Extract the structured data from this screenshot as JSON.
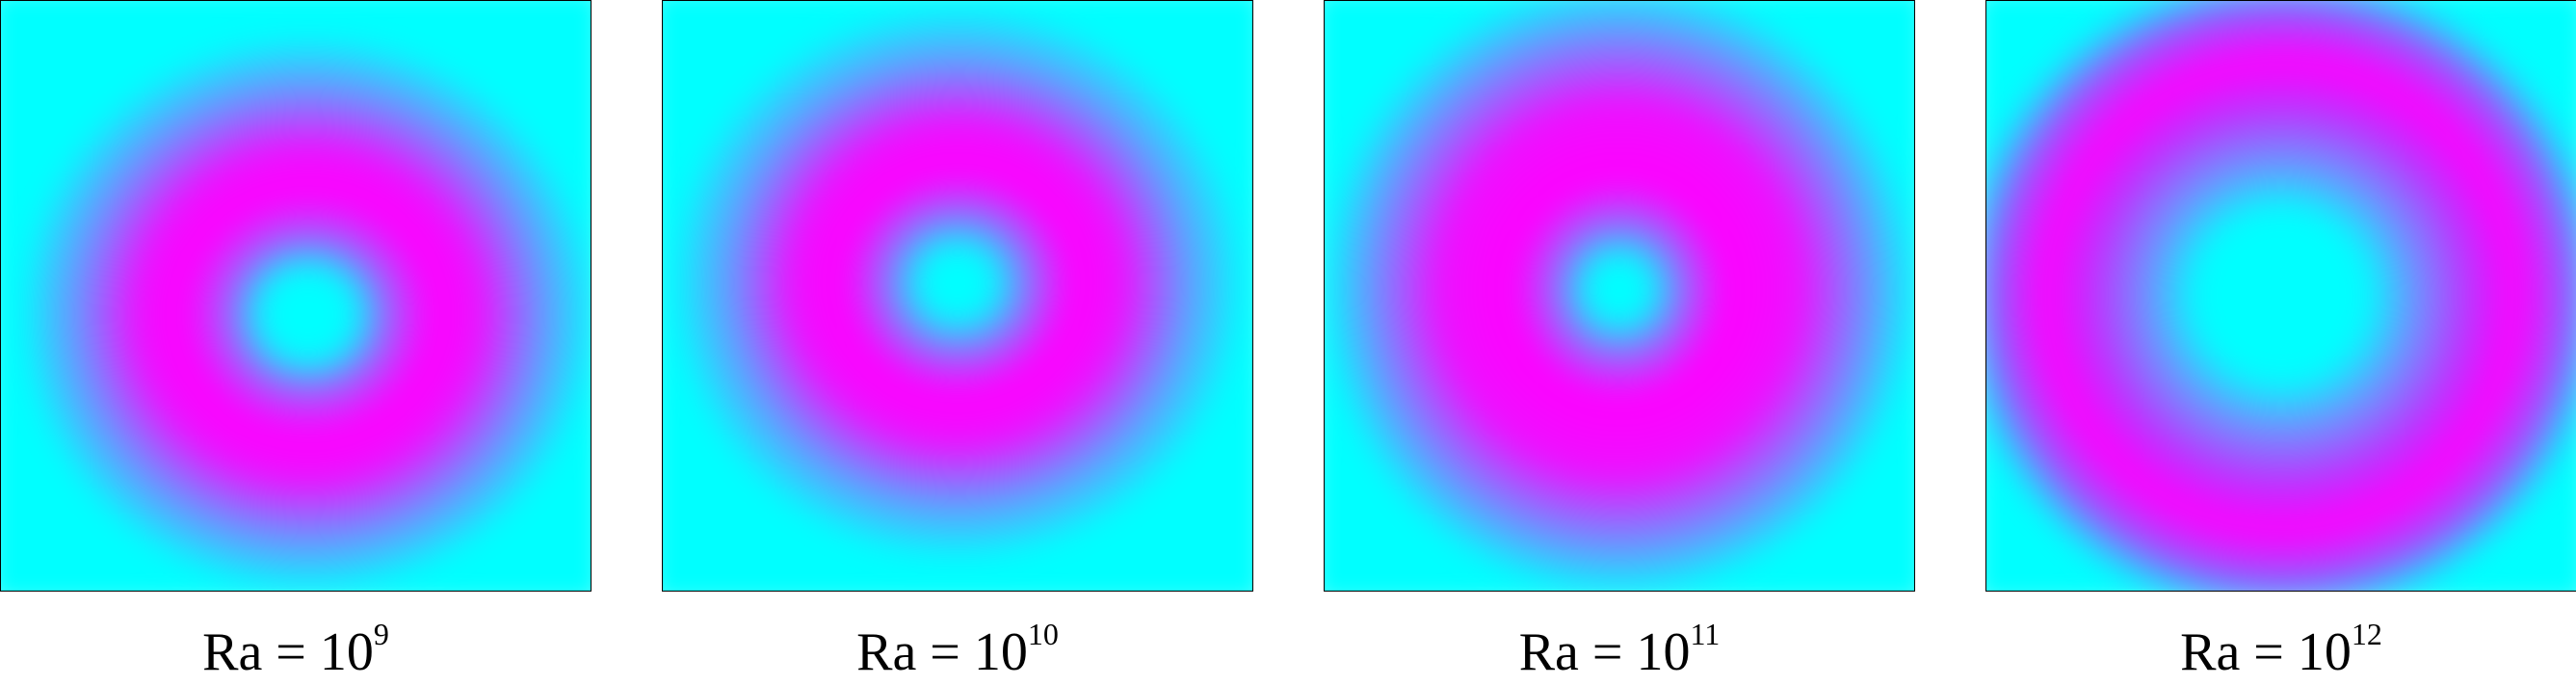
{
  "panels": [
    {
      "label": {
        "base": "Ra = 10",
        "exponent": "9"
      }
    },
    {
      "label": {
        "base": "Ra = 10",
        "exponent": "10"
      }
    },
    {
      "label": {
        "base": "Ra = 10",
        "exponent": "11"
      }
    },
    {
      "label": {
        "base": "Ra = 10",
        "exponent": "12"
      }
    }
  ]
}
